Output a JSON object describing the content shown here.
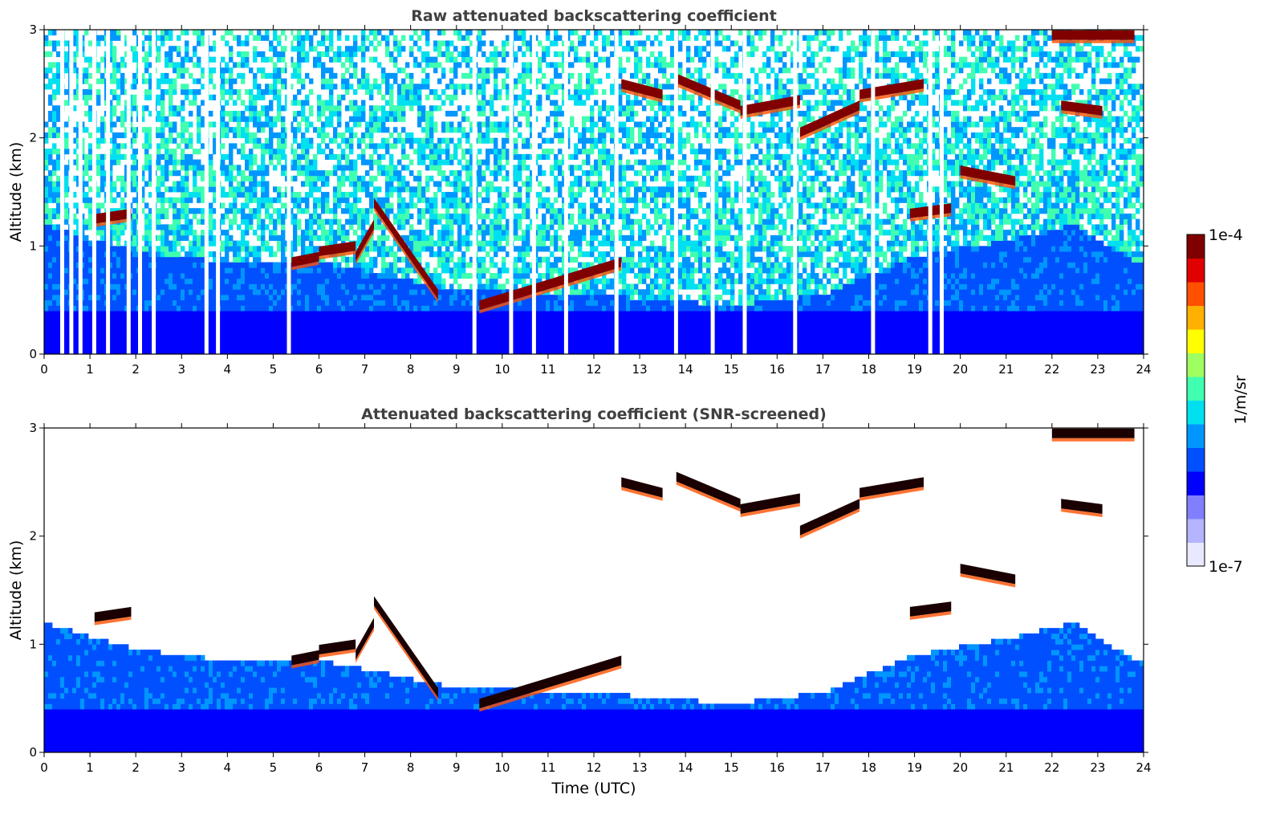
{
  "chart_data": [
    {
      "type": "heatmap",
      "title": "Raw attenuated backscattering coefficient",
      "xlabel": "",
      "ylabel": "Altitude (km)",
      "xlim": [
        0,
        24
      ],
      "ylim": [
        0,
        3
      ],
      "xticks": [
        0,
        1,
        2,
        3,
        4,
        5,
        6,
        7,
        8,
        9,
        10,
        11,
        12,
        13,
        14,
        15,
        16,
        17,
        18,
        19,
        20,
        21,
        22,
        23,
        24
      ],
      "yticks": [
        0,
        1,
        2,
        3
      ],
      "cloud_layers": [
        {
          "x": [
            1.1,
            1.9
          ],
          "y": [
            1.25,
            1.3
          ]
        },
        {
          "x": [
            5.4,
            6.0
          ],
          "y": [
            0.85,
            0.9
          ]
        },
        {
          "x": [
            6.0,
            6.8
          ],
          "y": [
            0.95,
            1.0
          ]
        },
        {
          "x": [
            6.8,
            7.2
          ],
          "y": [
            0.9,
            1.2
          ]
        },
        {
          "x": [
            7.2,
            8.6
          ],
          "y": [
            1.4,
            0.55
          ]
        },
        {
          "x": [
            9.5,
            12.6
          ],
          "y": [
            0.45,
            0.85
          ]
        },
        {
          "x": [
            12.6,
            13.5
          ],
          "y": [
            2.5,
            2.4
          ]
        },
        {
          "x": [
            13.8,
            15.2
          ],
          "y": [
            2.55,
            2.3
          ]
        },
        {
          "x": [
            15.2,
            16.5
          ],
          "y": [
            2.25,
            2.35
          ]
        },
        {
          "x": [
            16.5,
            17.8
          ],
          "y": [
            2.05,
            2.3
          ]
        },
        {
          "x": [
            17.8,
            19.2
          ],
          "y": [
            2.4,
            2.5
          ]
        },
        {
          "x": [
            18.9,
            19.8
          ],
          "y": [
            1.3,
            1.35
          ]
        },
        {
          "x": [
            20.0,
            21.2
          ],
          "y": [
            1.7,
            1.6
          ]
        },
        {
          "x": [
            22.2,
            23.1
          ],
          "y": [
            2.3,
            2.25
          ]
        },
        {
          "x": [
            22.0,
            23.8
          ],
          "y": [
            2.95,
            2.95
          ]
        }
      ]
    },
    {
      "type": "heatmap",
      "title": "Attenuated backscattering coefficient (SNR-screened)",
      "xlabel": "Time (UTC)",
      "ylabel": "Altitude (km)",
      "xlim": [
        0,
        24
      ],
      "ylim": [
        0,
        3
      ],
      "xticks": [
        0,
        1,
        2,
        3,
        4,
        5,
        6,
        7,
        8,
        9,
        10,
        11,
        12,
        13,
        14,
        15,
        16,
        17,
        18,
        19,
        20,
        21,
        22,
        23,
        24
      ],
      "yticks": [
        0,
        1,
        2,
        3
      ],
      "boundary_layer_top": [
        {
          "x": 0,
          "y": 1.2
        },
        {
          "x": 2,
          "y": 0.95
        },
        {
          "x": 4,
          "y": 0.85
        },
        {
          "x": 6,
          "y": 0.85
        },
        {
          "x": 9,
          "y": 0.6
        },
        {
          "x": 12,
          "y": 0.55
        },
        {
          "x": 15,
          "y": 0.45
        },
        {
          "x": 17,
          "y": 0.55
        },
        {
          "x": 19,
          "y": 0.9
        },
        {
          "x": 21,
          "y": 1.05
        },
        {
          "x": 22.5,
          "y": 1.2
        },
        {
          "x": 23.8,
          "y": 0.85
        }
      ]
    }
  ],
  "colorbar": {
    "label": "1/m/sr",
    "min_label": "1e-7",
    "max_label": "1e-4",
    "scale": "log",
    "colormap": [
      "#e8e8ff",
      "#b4b4ff",
      "#8080ff",
      "#0000ff",
      "#0050ff",
      "#0096ff",
      "#00e0f0",
      "#40ffb0",
      "#a0ff60",
      "#ffff00",
      "#ffb000",
      "#ff5000",
      "#e00000",
      "#800000"
    ]
  }
}
